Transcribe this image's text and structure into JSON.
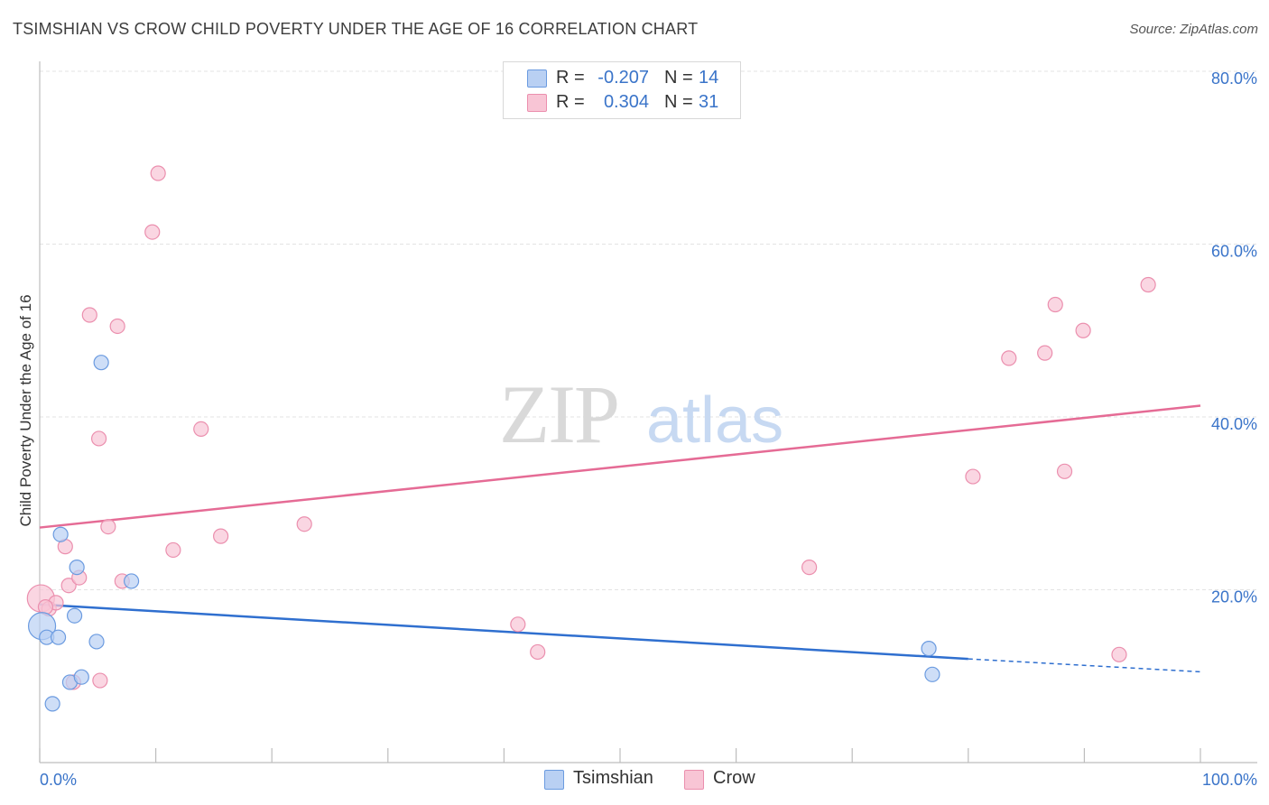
{
  "title": "TSIMSHIAN VS CROW CHILD POVERTY UNDER THE AGE OF 16 CORRELATION CHART",
  "source": "Source: ZipAtlas.com",
  "watermark": {
    "zip": "ZIP",
    "atlas": "atlas"
  },
  "legend": {
    "rows": [
      {
        "r_label": "R =",
        "r_value": "-0.207",
        "n_label": "N =",
        "n_value": "14"
      },
      {
        "r_label": "R =",
        "r_value": "0.304",
        "n_label": "N =",
        "n_value": "31"
      }
    ]
  },
  "bottom_legend": [
    "Tsimshian",
    "Crow"
  ],
  "colors": {
    "tsimshian_fill": "#b9d0f3",
    "tsimshian_stroke": "#6b9be0",
    "tsimshian_line": "#2f6fcf",
    "crow_fill": "#f8c5d5",
    "crow_stroke": "#eb8fae",
    "crow_line": "#e56b95",
    "axis_text": "#3a74c9",
    "grid": "#e3e3e3"
  },
  "chart_data": {
    "type": "scatter",
    "title": "TSIMSHIAN VS CROW CHILD POVERTY UNDER THE AGE OF 16 CORRELATION CHART",
    "xlabel": "",
    "ylabel": "Child Poverty Under the Age of 16",
    "xlim": [
      0,
      100
    ],
    "ylim": [
      0,
      80
    ],
    "x_tick_labels": [
      "0.0%",
      "100.0%"
    ],
    "y_ticks": [
      20,
      40,
      60,
      80
    ],
    "y_tick_labels": [
      "20.0%",
      "40.0%",
      "60.0%",
      "80.0%"
    ],
    "grid": true,
    "series": [
      {
        "name": "Tsimshian",
        "points": [
          {
            "x": 0.2,
            "y": 15.8,
            "big": true
          },
          {
            "x": 0.6,
            "y": 14.5
          },
          {
            "x": 1.1,
            "y": 6.8
          },
          {
            "x": 1.6,
            "y": 14.5
          },
          {
            "x": 1.8,
            "y": 26.4
          },
          {
            "x": 2.6,
            "y": 9.3
          },
          {
            "x": 3.0,
            "y": 17.0
          },
          {
            "x": 3.2,
            "y": 22.6
          },
          {
            "x": 3.6,
            "y": 9.9
          },
          {
            "x": 4.9,
            "y": 14.0
          },
          {
            "x": 5.3,
            "y": 46.3
          },
          {
            "x": 7.9,
            "y": 21.0
          },
          {
            "x": 76.6,
            "y": 13.2
          },
          {
            "x": 76.9,
            "y": 10.2
          }
        ],
        "trend": {
          "x0": 0,
          "y0": 18.3,
          "x1": 80,
          "y1": 12.0,
          "dash_to_x": 100,
          "dash_to_y": 10.5
        }
      },
      {
        "name": "Crow",
        "points": [
          {
            "x": 0.1,
            "y": 19.0,
            "big": true
          },
          {
            "x": 0.8,
            "y": 17.8
          },
          {
            "x": 1.4,
            "y": 18.5
          },
          {
            "x": 2.2,
            "y": 25.0
          },
          {
            "x": 2.5,
            "y": 20.5
          },
          {
            "x": 2.9,
            "y": 9.3
          },
          {
            "x": 3.4,
            "y": 21.4
          },
          {
            "x": 4.3,
            "y": 51.8
          },
          {
            "x": 5.1,
            "y": 37.5
          },
          {
            "x": 5.2,
            "y": 9.5
          },
          {
            "x": 5.9,
            "y": 27.3
          },
          {
            "x": 6.7,
            "y": 50.5
          },
          {
            "x": 7.1,
            "y": 21.0
          },
          {
            "x": 9.7,
            "y": 61.4
          },
          {
            "x": 10.2,
            "y": 68.2
          },
          {
            "x": 11.5,
            "y": 24.6
          },
          {
            "x": 13.9,
            "y": 38.6
          },
          {
            "x": 15.6,
            "y": 26.2
          },
          {
            "x": 22.8,
            "y": 27.6
          },
          {
            "x": 41.2,
            "y": 16.0
          },
          {
            "x": 42.9,
            "y": 12.8
          },
          {
            "x": 66.3,
            "y": 22.6
          },
          {
            "x": 80.4,
            "y": 33.1
          },
          {
            "x": 83.5,
            "y": 46.8
          },
          {
            "x": 86.6,
            "y": 47.4
          },
          {
            "x": 87.5,
            "y": 53.0
          },
          {
            "x": 88.3,
            "y": 33.7
          },
          {
            "x": 89.9,
            "y": 50.0
          },
          {
            "x": 93.0,
            "y": 12.5
          },
          {
            "x": 95.5,
            "y": 55.3
          },
          {
            "x": 0.5,
            "y": 18.0
          }
        ],
        "trend": {
          "x0": 0,
          "y0": 27.2,
          "x1": 100,
          "y1": 41.3
        }
      }
    ]
  }
}
